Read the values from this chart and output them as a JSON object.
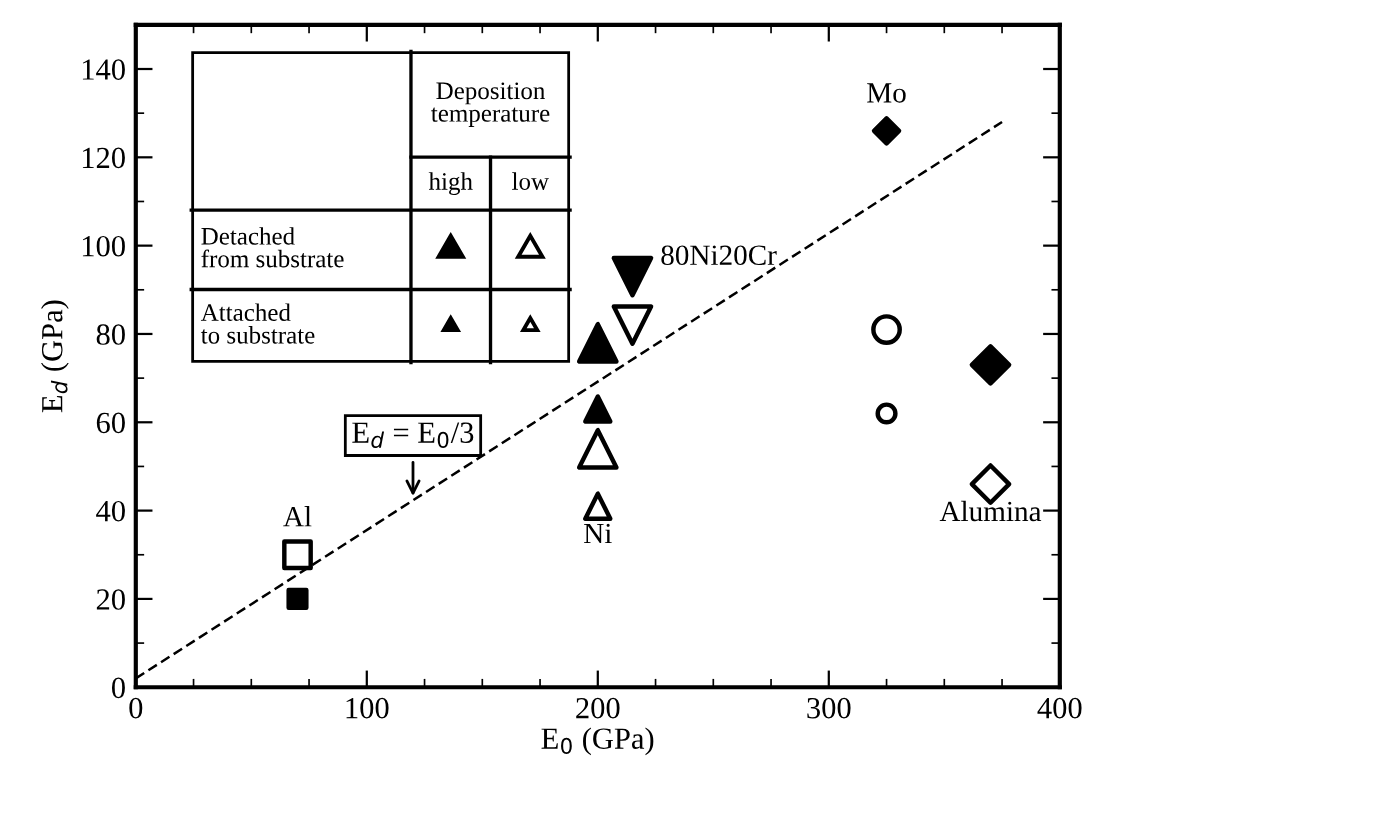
{
  "chart_data": {
    "type": "scatter",
    "xlabel": "E$_{0}$ (GPa)",
    "ylabel": "E$_{d}$ (GPa)",
    "xlim": [
      0,
      400
    ],
    "ylim": [
      0,
      150
    ],
    "xticks": [
      0,
      100,
      200,
      300,
      400
    ],
    "yticks": [
      0,
      20,
      40,
      60,
      80,
      100,
      120,
      140
    ],
    "grid": false,
    "annotations": [
      "Deposition\ntemperature",
      "high",
      "low",
      "Detached\nfrom substrate",
      "Attached\nto substrate",
      {
        "text": "E$_{d}$ = E$_{0}$/3",
        "x": 120,
        "y": 42
      }
    ],
    "series": [
      {
        "type": "line",
        "x": [
          0,
          375
        ],
        "values": [
          2,
          128
        ],
        "color": "#000000",
        "marker": "none",
        "line_style": "dashed"
      },
      {
        "name": "Al",
        "x": [
          70
        ],
        "values": [
          30
        ],
        "marker": "square",
        "color": "#ffffff",
        "sizes": [
          1
        ]
      },
      {
        "x": [
          70
        ],
        "values": [
          20
        ],
        "marker": "square",
        "color": "#000000",
        "sizes": [
          0.45
        ]
      },
      {
        "x": [
          200
        ],
        "values": [
          78
        ],
        "marker": "triangle",
        "color": "#000000",
        "sizes": [
          1
        ]
      },
      {
        "x": [
          200
        ],
        "values": [
          54
        ],
        "marker": "triangle",
        "color": "#ffffff",
        "sizes": [
          1
        ]
      },
      {
        "x": [
          200
        ],
        "values": [
          63
        ],
        "marker": "triangle",
        "color": "#000000",
        "sizes": [
          0.45
        ]
      },
      {
        "name": "Ni",
        "x": [
          200
        ],
        "values": [
          41
        ],
        "marker": "triangle",
        "color": "#ffffff",
        "sizes": [
          0.45
        ]
      },
      {
        "name": "80Ni20Cr",
        "x": [
          215
        ],
        "values": [
          93
        ],
        "marker": "triangle_down",
        "color": "#000000",
        "sizes": [
          1
        ]
      },
      {
        "x": [
          215
        ],
        "values": [
          82
        ],
        "marker": "triangle_down",
        "color": "#ffffff",
        "sizes": [
          1
        ]
      },
      {
        "name": "Mo",
        "x": [
          325
        ],
        "values": [
          126
        ],
        "marker": "diamond",
        "color": "#000000",
        "sizes": [
          0.45
        ]
      },
      {
        "x": [
          325
        ],
        "values": [
          81
        ],
        "marker": "circle",
        "color": "#ffffff",
        "sizes": [
          1
        ]
      },
      {
        "x": [
          325
        ],
        "values": [
          62
        ],
        "marker": "circle",
        "color": "#ffffff",
        "sizes": [
          0.45
        ]
      },
      {
        "x": [
          370
        ],
        "values": [
          73
        ],
        "marker": "diamond",
        "color": "#000000",
        "sizes": [
          1
        ]
      },
      {
        "name": "Alumina",
        "x": [
          370
        ],
        "values": [
          46
        ],
        "marker": "diamond",
        "color": "#ffffff",
        "sizes": [
          1
        ]
      }
    ]
  }
}
